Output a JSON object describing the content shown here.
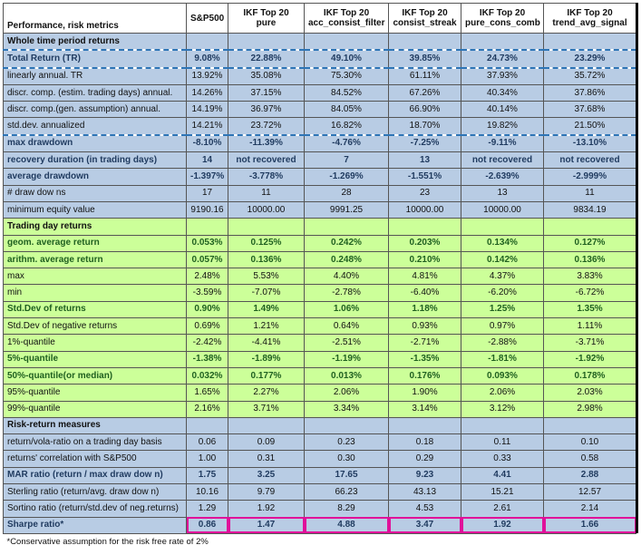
{
  "header": {
    "label": "Performance, risk metrics",
    "columns": [
      {
        "line1": "S&P500",
        "line2": ""
      },
      {
        "line1": "IKF Top 20",
        "line2": "pure"
      },
      {
        "line1": "IKF Top 20",
        "line2": "acc_consist_filter"
      },
      {
        "line1": "IKF Top 20",
        "line2": "consist_streak"
      },
      {
        "line1": "IKF Top 20",
        "line2": "pure_cons_comb"
      },
      {
        "line1": "IKF Top 20",
        "line2": "trend_avg_signal"
      }
    ]
  },
  "sections": [
    {
      "title": "Whole time period returns",
      "theme": "blue",
      "rows": [
        {
          "label": "Total Return (TR)",
          "values": [
            "9.08%",
            "22.88%",
            "49.10%",
            "39.85%",
            "24.73%",
            "23.29%"
          ],
          "bold": true
        },
        {
          "label": "linearly annual. TR",
          "values": [
            "13.92%",
            "35.08%",
            "75.30%",
            "61.11%",
            "37.93%",
            "35.72%"
          ],
          "bold": false
        },
        {
          "label": "discr. comp. (estim. trading days) annual.",
          "values": [
            "14.26%",
            "37.15%",
            "84.52%",
            "67.26%",
            "40.34%",
            "37.86%"
          ],
          "bold": false
        },
        {
          "label": "discr. comp.(gen. assumption) annual.",
          "values": [
            "14.19%",
            "36.97%",
            "84.05%",
            "66.90%",
            "40.14%",
            "37.68%"
          ],
          "bold": false
        },
        {
          "label": "std.dev. annualized",
          "values": [
            "14.21%",
            "23.72%",
            "16.82%",
            "18.70%",
            "19.82%",
            "21.50%"
          ],
          "bold": false
        },
        {
          "label": "max drawdown",
          "values": [
            "-8.10%",
            "-11.39%",
            "-4.76%",
            "-7.25%",
            "-9.11%",
            "-13.10%"
          ],
          "bold": true
        },
        {
          "label": "recovery duration (in trading days)",
          "values": [
            "14",
            "not recovered",
            "7",
            "13",
            "not recovered",
            "not recovered"
          ],
          "bold": true
        },
        {
          "label": "average drawdown",
          "values": [
            "-1.397%",
            "-3.778%",
            "-1.269%",
            "-1.551%",
            "-2.639%",
            "-2.999%"
          ],
          "bold": true
        },
        {
          "label": "# draw dow ns",
          "values": [
            "17",
            "11",
            "28",
            "23",
            "13",
            "11"
          ],
          "bold": false
        },
        {
          "label": "minimum equity value",
          "values": [
            "9190.16",
            "10000.00",
            "9991.25",
            "10000.00",
            "10000.00",
            "9834.19"
          ],
          "bold": false
        }
      ]
    },
    {
      "title": "Trading day returns",
      "theme": "green",
      "rows": [
        {
          "label": "geom. average return",
          "values": [
            "0.053%",
            "0.125%",
            "0.242%",
            "0.203%",
            "0.134%",
            "0.127%"
          ],
          "bold": true
        },
        {
          "label": "arithm. average return",
          "values": [
            "0.057%",
            "0.136%",
            "0.248%",
            "0.210%",
            "0.142%",
            "0.136%"
          ],
          "bold": true
        },
        {
          "label": "max",
          "values": [
            "2.48%",
            "5.53%",
            "4.40%",
            "4.81%",
            "4.37%",
            "3.83%"
          ],
          "bold": false
        },
        {
          "label": "min",
          "values": [
            "-3.59%",
            "-7.07%",
            "-2.78%",
            "-6.40%",
            "-6.20%",
            "-6.72%"
          ],
          "bold": false
        },
        {
          "label": "Std.Dev of returns",
          "values": [
            "0.90%",
            "1.49%",
            "1.06%",
            "1.18%",
            "1.25%",
            "1.35%"
          ],
          "bold": true
        },
        {
          "label": "Std.Dev of negative returns",
          "values": [
            "0.69%",
            "1.21%",
            "0.64%",
            "0.93%",
            "0.97%",
            "1.11%"
          ],
          "bold": false
        },
        {
          "label": "1%-quantile",
          "values": [
            "-2.42%",
            "-4.41%",
            "-2.51%",
            "-2.71%",
            "-2.88%",
            "-3.71%"
          ],
          "bold": false
        },
        {
          "label": "5%-quantile",
          "values": [
            "-1.38%",
            "-1.89%",
            "-1.19%",
            "-1.35%",
            "-1.81%",
            "-1.92%"
          ],
          "bold": true
        },
        {
          "label": "50%-quantile(or median)",
          "values": [
            "0.032%",
            "0.177%",
            "0.013%",
            "0.176%",
            "0.093%",
            "0.178%"
          ],
          "bold": true
        },
        {
          "label": "95%-quantile",
          "values": [
            "1.65%",
            "2.27%",
            "2.06%",
            "1.90%",
            "2.06%",
            "2.03%"
          ],
          "bold": false
        },
        {
          "label": "99%-quantile",
          "values": [
            "2.16%",
            "3.71%",
            "3.34%",
            "3.14%",
            "3.12%",
            "2.98%"
          ],
          "bold": false
        }
      ]
    },
    {
      "title": "Risk-return measures",
      "theme": "blue",
      "rows": [
        {
          "label": "return/vola-ratio on a trading day basis",
          "values": [
            "0.06",
            "0.09",
            "0.23",
            "0.18",
            "0.11",
            "0.10"
          ],
          "bold": false
        },
        {
          "label": "returns' correlation with S&P500",
          "values": [
            "1.00",
            "0.31",
            "0.30",
            "0.29",
            "0.33",
            "0.58"
          ],
          "bold": false
        },
        {
          "label": "MAR ratio (return / max draw dow n)",
          "values": [
            "1.75",
            "3.25",
            "17.65",
            "9.23",
            "4.41",
            "2.88"
          ],
          "bold": true
        },
        {
          "label": "Sterling ratio (return/avg. draw dow n)",
          "values": [
            "10.16",
            "9.79",
            "66.23",
            "43.13",
            "15.21",
            "12.57"
          ],
          "bold": false
        },
        {
          "label": "Sortino ratio (return/std.dev of neg.returns)",
          "values": [
            "1.29",
            "1.92",
            "8.29",
            "4.53",
            "2.61",
            "2.14"
          ],
          "bold": false
        },
        {
          "label": "Sharpe ratio*",
          "values": [
            "0.86",
            "1.47",
            "4.88",
            "3.47",
            "1.92",
            "1.66"
          ],
          "bold": true
        }
      ]
    }
  ],
  "footnote": "*Conservative assumption for the risk free rate of 2%"
}
